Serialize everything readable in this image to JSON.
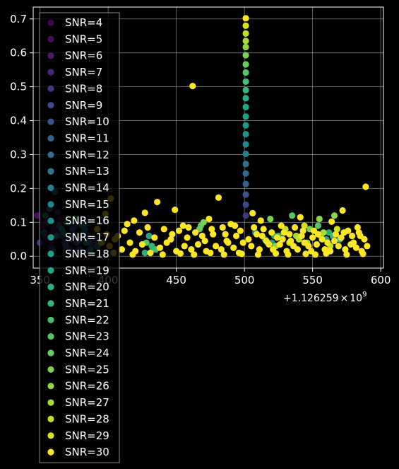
{
  "chart_data": {
    "type": "scatter",
    "title": "",
    "xlabel": "",
    "ylabel": "",
    "offset_text": {
      "base": "+1.126259",
      "times": "×",
      "ten": "10",
      "exponent": "9"
    },
    "xlim": [
      345,
      602
    ],
    "ylim": [
      -0.035,
      0.735
    ],
    "x_ticks": [
      {
        "value": 350,
        "label": "350"
      },
      {
        "value": 400,
        "label": "400"
      },
      {
        "value": 450,
        "label": "450"
      },
      {
        "value": 500,
        "label": "500"
      },
      {
        "value": 550,
        "label": "550"
      },
      {
        "value": 600,
        "label": "600"
      }
    ],
    "y_ticks": [
      {
        "value": 0.0,
        "label": "0.0"
      },
      {
        "value": 0.1,
        "label": "0.1"
      },
      {
        "value": 0.2,
        "label": "0.2"
      },
      {
        "value": 0.3,
        "label": "0.3"
      },
      {
        "value": 0.4,
        "label": "0.4"
      },
      {
        "value": 0.5,
        "label": "0.5"
      },
      {
        "value": 0.6,
        "label": "0.6"
      },
      {
        "value": 0.7,
        "label": "0.7"
      }
    ],
    "grid": true,
    "legend_position": "upper-left",
    "background": "#000000",
    "foreground": "#ffffff",
    "series": [
      {
        "name": "SNR=4",
        "color": "#440154",
        "points": [
          [
            356,
            0.05
          ],
          [
            362,
            0.07
          ],
          [
            370,
            0.04
          ],
          [
            352,
            0.09
          ]
        ]
      },
      {
        "name": "SNR=5",
        "color": "#470e61",
        "points": [
          [
            358,
            0.03
          ],
          [
            365,
            0.11
          ],
          [
            375,
            0.06
          ],
          [
            348,
            0.12
          ]
        ]
      },
      {
        "name": "SNR=6",
        "color": "#481a6c",
        "points": [
          [
            360,
            0.08
          ],
          [
            372,
            0.02
          ],
          [
            380,
            0.05
          ],
          [
            354,
            0.06
          ]
        ]
      },
      {
        "name": "SNR=7",
        "color": "#472878",
        "points": [
          [
            363,
            0.13
          ],
          [
            368,
            0.04
          ],
          [
            376,
            0.09
          ],
          [
            388,
            0.03
          ]
        ]
      },
      {
        "name": "SNR=8",
        "color": "#453581",
        "points": [
          [
            350,
            0.04
          ],
          [
            366,
            0.06
          ],
          [
            382,
            0.07
          ],
          [
            501,
            0.12
          ]
        ]
      },
      {
        "name": "SNR=9",
        "color": "#3f4788",
        "points": [
          [
            355,
            0.1
          ],
          [
            371,
            0.05
          ],
          [
            501,
            0.152
          ],
          [
            379,
            0.02
          ]
        ]
      },
      {
        "name": "SNR=10",
        "color": "#3b528b",
        "points": [
          [
            359,
            0.02
          ],
          [
            374,
            0.08
          ],
          [
            501,
            0.182
          ],
          [
            385,
            0.06
          ]
        ]
      },
      {
        "name": "SNR=11",
        "color": "#355f8d",
        "points": [
          [
            364,
            0.09
          ],
          [
            377,
            0.04
          ],
          [
            501,
            0.213
          ],
          [
            390,
            0.05
          ]
        ]
      },
      {
        "name": "SNR=12",
        "color": "#306a8e",
        "points": [
          [
            353,
            0.07
          ],
          [
            369,
            0.03
          ],
          [
            501,
            0.244
          ],
          [
            383,
            0.08
          ]
        ]
      },
      {
        "name": "SNR=13",
        "color": "#2c738e",
        "points": [
          [
            361,
            0.19
          ],
          [
            373,
            0.06
          ],
          [
            501,
            0.272
          ],
          [
            386,
            0.04
          ]
        ]
      },
      {
        "name": "SNR=14",
        "color": "#287d8e",
        "points": [
          [
            357,
            0.14
          ],
          [
            378,
            0.05
          ],
          [
            501,
            0.302
          ],
          [
            392,
            0.03
          ]
        ]
      },
      {
        "name": "SNR=15",
        "color": "#25858e",
        "points": [
          [
            367,
            0.07
          ],
          [
            381,
            0.09
          ],
          [
            501,
            0.33
          ],
          [
            387,
            0.02
          ]
        ]
      },
      {
        "name": "SNR=16",
        "color": "#218f8d",
        "points": [
          [
            354,
            0.12
          ],
          [
            370,
            0.1
          ],
          [
            501,
            0.36
          ],
          [
            508,
            0.07
          ]
        ]
      },
      {
        "name": "SNR=17",
        "color": "#1f988b",
        "points": [
          [
            362,
            0.06
          ],
          [
            376,
            0.11
          ],
          [
            501,
            0.386
          ],
          [
            515,
            0.05
          ]
        ]
      },
      {
        "name": "SNR=18",
        "color": "#1fa088",
        "points": [
          [
            366,
            0.08
          ],
          [
            384,
            0.04
          ],
          [
            501,
            0.412
          ],
          [
            520,
            0.04
          ]
        ]
      },
      {
        "name": "SNR=19",
        "color": "#22a884",
        "points": [
          [
            430,
            0.06
          ],
          [
            501,
            0.44
          ],
          [
            522,
            0.06
          ],
          [
            560,
            0.05
          ]
        ]
      },
      {
        "name": "SNR=20",
        "color": "#2ab07f",
        "points": [
          [
            427,
            0.01
          ],
          [
            501,
            0.466
          ],
          [
            562,
            0.07
          ],
          [
            433,
            0.02
          ]
        ]
      },
      {
        "name": "SNR=21",
        "color": "#35b779",
        "points": [
          [
            432,
            0.03
          ],
          [
            501,
            0.49
          ],
          [
            525,
            0.06
          ],
          [
            565,
            0.06
          ]
        ]
      },
      {
        "name": "SNR=22",
        "color": "#44bf70",
        "points": [
          [
            435,
            0.02
          ],
          [
            501,
            0.515
          ],
          [
            517,
            0.04
          ],
          [
            570,
            0.05
          ]
        ]
      },
      {
        "name": "SNR=23",
        "color": "#54c568",
        "points": [
          [
            428,
            0.04
          ],
          [
            501,
            0.542
          ],
          [
            535,
            0.12
          ],
          [
            554,
            0.09
          ]
        ]
      },
      {
        "name": "SNR=24",
        "color": "#67cc5c",
        "points": [
          [
            468,
            0.09
          ],
          [
            501,
            0.566
          ],
          [
            467,
            0.08
          ],
          [
            556,
            0.06
          ]
        ]
      },
      {
        "name": "SNR=25",
        "color": "#7ad151",
        "points": [
          [
            470,
            0.1
          ],
          [
            501,
            0.593
          ],
          [
            519,
            0.11
          ],
          [
            548,
            0.08
          ]
        ]
      },
      {
        "name": "SNR=26",
        "color": "#8fd744",
        "points": [
          [
            501,
            0.617
          ],
          [
            566,
            0.12
          ],
          [
            555,
            0.11
          ],
          [
            523,
            0.03
          ]
        ]
      },
      {
        "name": "SNR=27",
        "color": "#a5db36",
        "points": [
          [
            501,
            0.635
          ],
          [
            558,
            0.07
          ],
          [
            546,
            0.04
          ],
          [
            538,
            0.06
          ]
        ]
      },
      {
        "name": "SNR=28",
        "color": "#bddf26",
        "points": [
          [
            501,
            0.657
          ],
          [
            540,
            0.05
          ],
          [
            563,
            0.03
          ],
          [
            530,
            0.08
          ]
        ]
      },
      {
        "name": "SNR=29",
        "color": "#d2e21b",
        "points": [
          [
            501,
            0.68
          ],
          [
            544,
            0.09
          ],
          [
            568,
            0.08
          ],
          [
            533,
            0.04
          ]
        ]
      },
      {
        "name": "SNR=30",
        "color": "#fde725",
        "points": [
          [
            501,
            0.702
          ],
          [
            462,
            0.502
          ],
          [
            589,
            0.205
          ],
          [
            402,
            0.17
          ],
          [
            436,
            0.16
          ],
          [
            481,
            0.173
          ],
          [
            449,
            0.137
          ],
          [
            506,
            0.127
          ],
          [
            572,
            0.135
          ],
          [
            398,
            0.125
          ],
          [
            427,
            0.128
          ],
          [
            419,
            0.105
          ],
          [
            455,
            0.09
          ],
          [
            474,
            0.11
          ],
          [
            490,
            0.095
          ],
          [
            512,
            0.105
          ],
          [
            527,
            0.09
          ],
          [
            541,
            0.115
          ],
          [
            564,
            0.102
          ],
          [
            583,
            0.085
          ],
          [
            392,
            0.08
          ],
          [
            407,
            0.06
          ],
          [
            414,
            0.095
          ],
          [
            423,
            0.07
          ],
          [
            441,
            0.08
          ],
          [
            446,
            0.05
          ],
          [
            452,
            0.075
          ],
          [
            458,
            0.055
          ],
          [
            464,
            0.07
          ],
          [
            471,
            0.045
          ],
          [
            477,
            0.065
          ],
          [
            484,
            0.085
          ],
          [
            488,
            0.04
          ],
          [
            494,
            0.06
          ],
          [
            497,
            0.075
          ],
          [
            503,
            0.05
          ],
          [
            509,
            0.065
          ],
          [
            514,
            0.08
          ],
          [
            518,
            0.035
          ],
          [
            524,
            0.055
          ],
          [
            529,
            0.07
          ],
          [
            534,
            0.045
          ],
          [
            537,
            0.085
          ],
          [
            542,
            0.06
          ],
          [
            547,
            0.03
          ],
          [
            551,
            0.075
          ],
          [
            557,
            0.05
          ],
          [
            561,
            0.04
          ],
          [
            567,
            0.065
          ],
          [
            571,
            0.055
          ],
          [
            576,
            0.075
          ],
          [
            580,
            0.04
          ],
          [
            585,
            0.06
          ],
          [
            588,
            0.05
          ],
          [
            395,
            0.04
          ],
          [
            401,
            0.03
          ],
          [
            405,
            0.05
          ],
          [
            410,
            0.02
          ],
          [
            416,
            0.04
          ],
          [
            420,
            0.015
          ],
          [
            425,
            0.035
          ],
          [
            438,
            0.025
          ],
          [
            443,
            0.04
          ],
          [
            450,
            0.015
          ],
          [
            456,
            0.03
          ],
          [
            461,
            0.02
          ],
          [
            466,
            0.035
          ],
          [
            472,
            0.015
          ],
          [
            479,
            0.03
          ],
          [
            483,
            0.02
          ],
          [
            487,
            0.045
          ],
          [
            492,
            0.025
          ],
          [
            496,
            0.01
          ],
          [
            505,
            0.03
          ],
          [
            511,
            0.02
          ],
          [
            516,
            0.045
          ],
          [
            521,
            0.02
          ],
          [
            526,
            0.035
          ],
          [
            531,
            0.015
          ],
          [
            536,
            0.03
          ],
          [
            539,
            0.02
          ],
          [
            544,
            0.04
          ],
          [
            549,
            0.015
          ],
          [
            553,
            0.035
          ],
          [
            559,
            0.02
          ],
          [
            563,
            0.015
          ],
          [
            569,
            0.03
          ],
          [
            574,
            0.02
          ],
          [
            578,
            0.035
          ],
          [
            582,
            0.025
          ],
          [
            586,
            0.015
          ],
          [
            590,
            0.03
          ],
          [
            399,
            0.065
          ],
          [
            412,
            0.075
          ],
          [
            429,
            0.085
          ],
          [
            434,
            0.055
          ],
          [
            447,
            0.065
          ],
          [
            459,
            0.085
          ],
          [
            469,
            0.06
          ],
          [
            476,
            0.08
          ],
          [
            486,
            0.065
          ],
          [
            493,
            0.09
          ],
          [
            499,
            0.04
          ],
          [
            507,
            0.085
          ],
          [
            513,
            0.06
          ],
          [
            520,
            0.07
          ],
          [
            528,
            0.05
          ],
          [
            533,
            0.065
          ],
          [
            543,
            0.075
          ],
          [
            550,
            0.055
          ],
          [
            554,
            0.065
          ],
          [
            566,
            0.045
          ],
          [
            573,
            0.07
          ],
          [
            579,
            0.06
          ],
          [
            584,
            0.07
          ],
          [
            404,
            0.01
          ],
          [
            418,
            0.005
          ],
          [
            431,
            0.01
          ],
          [
            440,
            0.005
          ],
          [
            453,
            0.008
          ],
          [
            463,
            0.005
          ],
          [
            475,
            0.01
          ],
          [
            485,
            0.005
          ],
          [
            498,
            0.007
          ],
          [
            510,
            0.005
          ],
          [
            523,
            0.008
          ],
          [
            532,
            0.005
          ],
          [
            545,
            0.007
          ],
          [
            552,
            0.005
          ],
          [
            560,
            0.008
          ],
          [
            575,
            0.005
          ],
          [
            587,
            0.007
          ]
        ]
      }
    ]
  }
}
